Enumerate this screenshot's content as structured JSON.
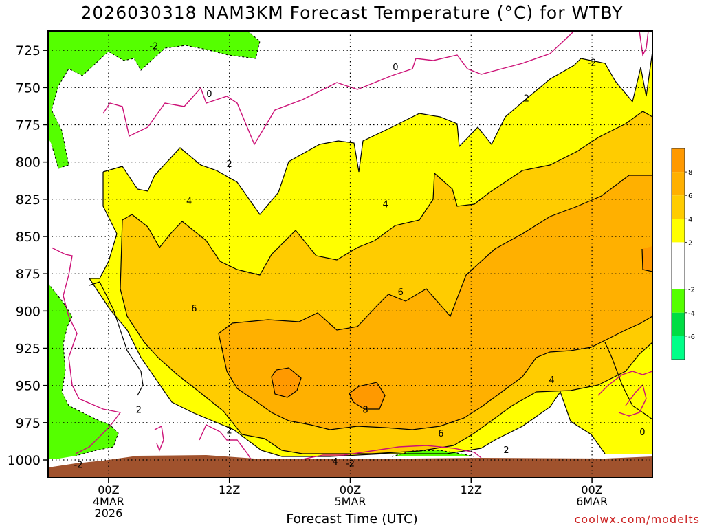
{
  "title": "2026030318 NAM3KM Forecast Temperature (°C) for WTBY",
  "xlabel": "Forecast Time (UTC)",
  "credit": "coolwx.com/modelts",
  "chart_data": {
    "type": "contour",
    "title": "2026030318 NAM3KM Forecast Temperature (°C) for WTBY",
    "xlabel": "Forecast Time (UTC)",
    "ylabel": "",
    "y_reversed": true,
    "ylim": [
      1012,
      712
    ],
    "y_ticks": [
      725,
      750,
      775,
      800,
      825,
      850,
      875,
      900,
      925,
      950,
      975,
      1000
    ],
    "xlim_hours": [
      -6,
      54
    ],
    "x_ticks": [
      {
        "hour": 0,
        "lines": [
          "00Z",
          "4MAR",
          "2026"
        ]
      },
      {
        "hour": 12,
        "lines": [
          "12Z"
        ]
      },
      {
        "hour": 24,
        "lines": [
          "00Z",
          "5MAR"
        ]
      },
      {
        "hour": 36,
        "lines": [
          "12Z"
        ]
      },
      {
        "hour": 48,
        "lines": [
          "00Z",
          "6MAR"
        ]
      }
    ],
    "grid": true,
    "colorbar": {
      "ticks": [
        8,
        6,
        4,
        2,
        -2,
        -4,
        -6
      ],
      "bands": [
        {
          "range": [
            8,
            10
          ],
          "color": "#ff9900"
        },
        {
          "range": [
            6,
            8
          ],
          "color": "#ffb000"
        },
        {
          "range": [
            4,
            6
          ],
          "color": "#ffcc00"
        },
        {
          "range": [
            2,
            4
          ],
          "color": "#ffff00"
        },
        {
          "range": [
            -2,
            2
          ],
          "color": "#ffffff"
        },
        {
          "range": [
            -4,
            -2
          ],
          "color": "#55ff00"
        },
        {
          "range": [
            -6,
            -4
          ],
          "color": "#00dd44"
        },
        {
          "range": [
            -8,
            -6
          ],
          "color": "#00ff88"
        }
      ]
    },
    "colors": {
      "freezing_line": "#cc1177",
      "ground": "#a0522d"
    },
    "contour_labels": [
      {
        "text": "-2",
        "hour": 4.5,
        "p": 722
      },
      {
        "text": "0",
        "hour": 28.5,
        "p": 736
      },
      {
        "text": "0",
        "hour": 10,
        "p": 754
      },
      {
        "text": "-2",
        "hour": 48,
        "p": 733
      },
      {
        "text": "2",
        "hour": 41.5,
        "p": 757
      },
      {
        "text": "2",
        "hour": 12,
        "p": 801
      },
      {
        "text": "4",
        "hour": 8,
        "p": 826
      },
      {
        "text": "4",
        "hour": 27.5,
        "p": 828
      },
      {
        "text": "6",
        "hour": 29,
        "p": 887
      },
      {
        "text": "6",
        "hour": 8.5,
        "p": 898
      },
      {
        "text": "2",
        "hour": 3,
        "p": 966
      },
      {
        "text": "2",
        "hour": 12,
        "p": 980
      },
      {
        "text": "8",
        "hour": 25.5,
        "p": 966
      },
      {
        "text": "6",
        "hour": 33,
        "p": 982
      },
      {
        "text": "4",
        "hour": 44,
        "p": 946
      },
      {
        "text": "2",
        "hour": 39.5,
        "p": 993
      },
      {
        "text": "0",
        "hour": 53,
        "p": 981
      },
      {
        "text": "-2",
        "hour": -3,
        "p": 1003
      },
      {
        "text": "4",
        "hour": 22.5,
        "p": 1001
      },
      {
        "text": "-2",
        "hour": 24,
        "p": 1002
      }
    ]
  }
}
